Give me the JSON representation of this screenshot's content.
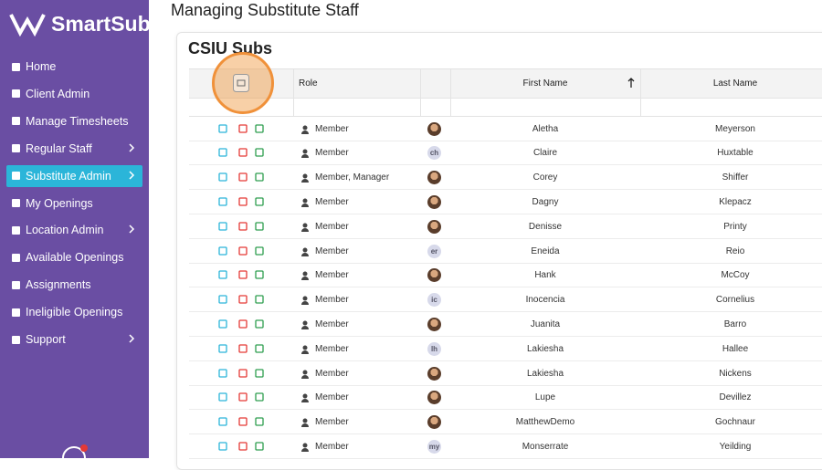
{
  "logo": "SmartSub",
  "nav": [
    {
      "label": "Home"
    },
    {
      "label": "Client Admin"
    },
    {
      "label": "Manage Timesheets"
    },
    {
      "label": "Regular Staff",
      "submenu": true
    },
    {
      "label": "Substitute Admin",
      "submenu": true,
      "active": true
    },
    {
      "label": "My Openings"
    },
    {
      "label": "Location Admin",
      "submenu": true
    },
    {
      "label": "Available Openings"
    },
    {
      "label": "Assignments"
    },
    {
      "label": "Ineligible Openings"
    },
    {
      "label": "Support",
      "submenu": true
    }
  ],
  "header": {
    "title": "Managing Substitute Staff"
  },
  "card": {
    "title": "CSIU Subs"
  },
  "table": {
    "columns": [
      "Role",
      "First Name",
      "Last Name"
    ],
    "rows": [
      {
        "role": "Member",
        "first": "Aletha",
        "last": "Meyerson"
      },
      {
        "role": "Member",
        "initials": "ch",
        "first": "Claire",
        "last": "Huxtable"
      },
      {
        "role": "Member, Manager",
        "first": "Corey",
        "last": "Shiffer"
      },
      {
        "role": "Member",
        "first": "Dagny",
        "last": "Klepacz"
      },
      {
        "role": "Member",
        "first": "Denisse",
        "last": "Printy"
      },
      {
        "role": "Member",
        "initials": "er",
        "first": "Eneida",
        "last": "Reio"
      },
      {
        "role": "Member",
        "first": "Hank",
        "last": "McCoy"
      },
      {
        "role": "Member",
        "initials": "ic",
        "first": "Inocencia",
        "last": "Cornelius"
      },
      {
        "role": "Member",
        "first": "Juanita",
        "last": "Barro"
      },
      {
        "role": "Member",
        "initials": "lh",
        "first": "Lakiesha",
        "last": "Hallee"
      },
      {
        "role": "Member",
        "first": "Lakiesha",
        "last": "Nickens"
      },
      {
        "role": "Member",
        "first": "Lupe",
        "last": "Devillez"
      },
      {
        "role": "Member",
        "first": "MatthewDemo",
        "last": "Gochnaur"
      },
      {
        "role": "Member",
        "initials": "my",
        "first": "Monserrate",
        "last": "Yeilding"
      }
    ]
  }
}
